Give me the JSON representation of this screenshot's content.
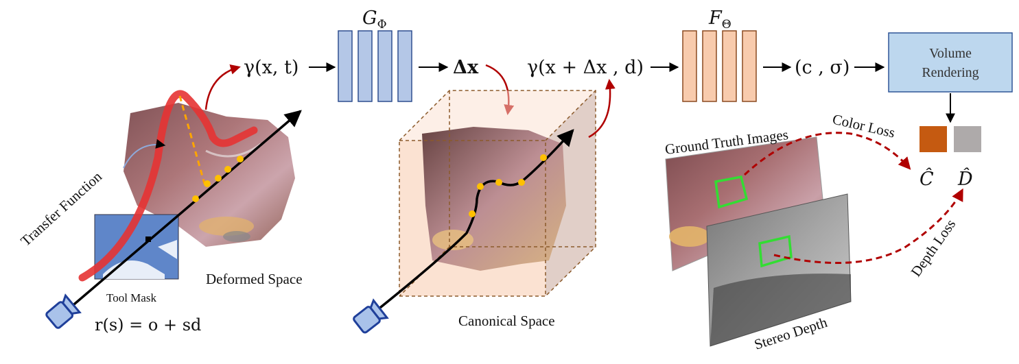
{
  "networks": {
    "g": {
      "name": "G",
      "sub": "Φ"
    },
    "f": {
      "name": "F",
      "sub": "Θ"
    }
  },
  "pipeline": {
    "enc_xt": "γ(x, t)",
    "delta_x": "Δx",
    "enc_canon": "γ(x + Δx , d)",
    "c_sigma": "(c , σ)",
    "volume_rendering_line1": "Volume",
    "volume_rendering_line2": "Rendering"
  },
  "labels": {
    "transfer_function": "Transfer Function",
    "tool_mask": "Tool Mask",
    "deformed_space": "Deformed Space",
    "ray_equation": "r(s) = o + sd",
    "canonical_space": "Canonical Space",
    "ground_truth_images": "Ground Truth Images",
    "stereo_depth": "Stereo Depth",
    "color_loss": "Color Loss",
    "depth_loss": "Depth Loss",
    "c_hat": "Ĉ",
    "d_hat": "D̂"
  },
  "colors": {
    "blue_net": "#b4c7e7",
    "orange_net": "#f8cbad",
    "volume_box": "#bdd7ee",
    "red_arrow": "#b00000",
    "color_swatch": "#c55a11",
    "depth_swatch": "#aeaaaa",
    "sample_point": "#ffc000",
    "highlight_box": "#33dd33"
  }
}
